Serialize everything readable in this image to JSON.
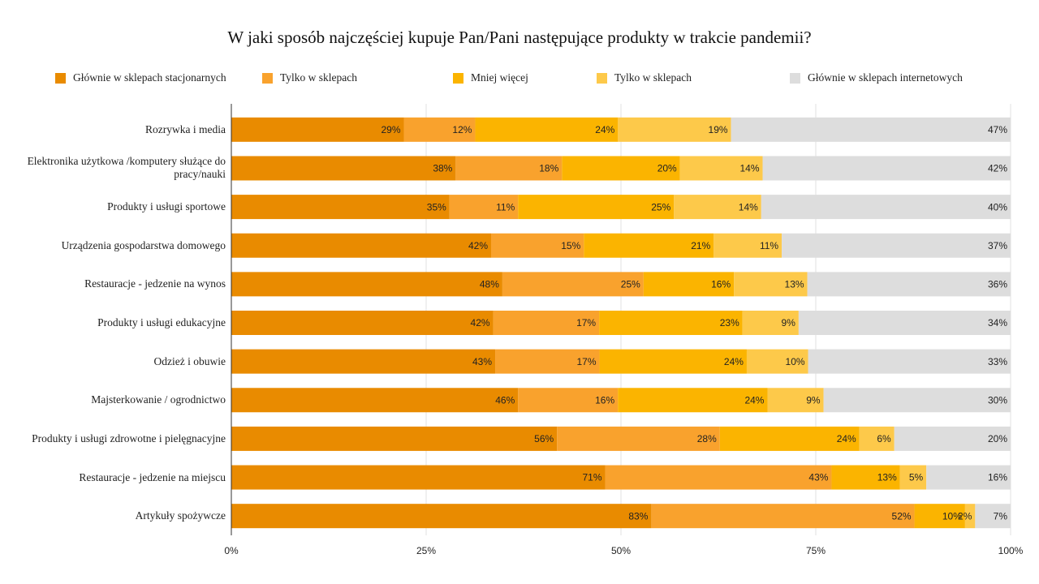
{
  "chart_data": {
    "type": "bar",
    "orientation": "horizontal",
    "stack": "percent",
    "title": "W jaki sposób najczęściej kupuje Pan/Pani następujące produkty w trakcie pandemii?",
    "categories": [
      "Rozrywka i media",
      "Elektronika użytkowa /komputery służące do pracy/nauki",
      "Produkty i usługi sportowe",
      "Urządzenia gospodarstwa domowego",
      "Restauracje - jedzenie na wynos",
      "Produkty i usługi edukacyjne",
      "Odzież i obuwie",
      "Majsterkowanie / ogrodnictwo",
      "Produkty i usługi zdrowotne i pielęgnacyjne",
      "Restauracje - jedzenie na miejscu",
      "Artykuły spożywcze"
    ],
    "series": [
      {
        "name": "Głównie w sklepach stacjonarnych",
        "color": "#e98b00",
        "values": [
          29,
          38,
          35,
          42,
          48,
          42,
          43,
          46,
          56,
          71,
          83
        ],
        "value_labels": [
          "29%",
          "38%",
          "35%",
          "42%",
          "48%",
          "42%",
          "43%",
          "46%",
          "56%",
          "71%",
          "83%"
        ]
      },
      {
        "name": "Tylko w sklepach",
        "color": "#f9a22d",
        "values": [
          12,
          18,
          11,
          15,
          25,
          17,
          17,
          16,
          28,
          43,
          52
        ],
        "value_labels": [
          "12%",
          "18%",
          "11%",
          "15%",
          "25%",
          "17%",
          "17%",
          "16%",
          "28%",
          "43%",
          "52%"
        ]
      },
      {
        "name": "Mniej więcej",
        "color": "#fbb400",
        "values": [
          24,
          20,
          25,
          21,
          16,
          23,
          24,
          24,
          24,
          13,
          10
        ],
        "value_labels": [
          "24%",
          "20%",
          "25%",
          "21%",
          "16%",
          "23%",
          "24%",
          "24%",
          "24%",
          "13%",
          "10%"
        ]
      },
      {
        "name": "Tylko w sklepach",
        "color": "#fdc94a",
        "values": [
          19,
          14,
          14,
          11,
          13,
          9,
          10,
          9,
          6,
          5,
          2
        ],
        "value_labels": [
          "19%",
          "14%",
          "14%",
          "11%",
          "13%",
          "9%",
          "10%",
          "9%",
          "6%",
          "5%",
          "2%"
        ]
      },
      {
        "name": "Głównie w sklepach internetowych",
        "color": "#dddddd",
        "values": [
          47,
          42,
          40,
          37,
          36,
          34,
          33,
          30,
          20,
          16,
          7
        ],
        "value_labels": [
          "47%",
          "42%",
          "40%",
          "37%",
          "36%",
          "34%",
          "33%",
          "30%",
          "20%",
          "16%",
          "7%"
        ]
      }
    ],
    "xlim": [
      0,
      100
    ],
    "xticks": [
      {
        "value": 0,
        "label": "0%"
      },
      {
        "value": 25,
        "label": "25%"
      },
      {
        "value": 50,
        "label": "50%"
      },
      {
        "value": 75,
        "label": "75%"
      },
      {
        "value": 100,
        "label": "100%"
      }
    ],
    "grid": true
  }
}
